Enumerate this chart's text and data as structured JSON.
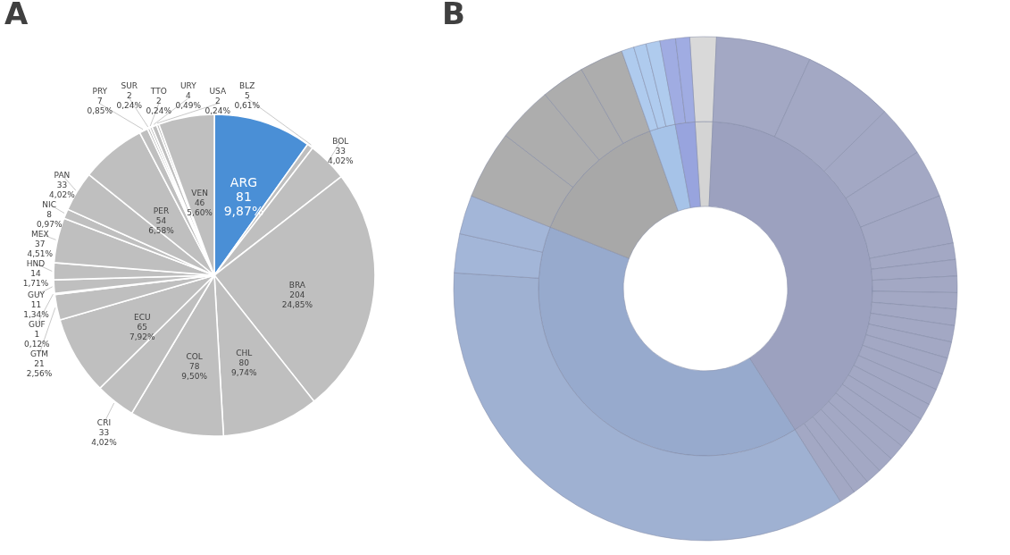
{
  "chart_data": [
    {
      "type": "pie",
      "title": "A",
      "categories": [
        "ARG",
        "BLZ",
        "BOL",
        "BRA",
        "CHL",
        "COL",
        "CRI",
        "ECU",
        "GTM",
        "GUF",
        "GUY",
        "HND",
        "MEX",
        "NIC",
        "PAN",
        "PER",
        "PRY",
        "SUR",
        "TTO",
        "URY",
        "USA",
        "VEN"
      ],
      "values": [
        81,
        5,
        33,
        204,
        80,
        78,
        33,
        65,
        21,
        1,
        11,
        14,
        37,
        8,
        33,
        54,
        7,
        2,
        2,
        4,
        2,
        46
      ],
      "value_labels": [
        "81\n9,87%",
        "5\n0,61%",
        "33\n4,02%",
        "204\n24,85%",
        "80\n9,74%",
        "78\n9,50%",
        "33\n4,02%",
        "65\n7,92%",
        "21\n2,56%",
        "1\n0,12%",
        "11\n1,34%",
        "14\n1,71%",
        "37\n4,51%",
        "8\n0,97%",
        "33\n4,02%",
        "54\n6,58%",
        "7\n0,85%",
        "2\n0,24%",
        "2\n0,24%",
        "4\n0,49%",
        "2\n0,24%",
        "46\n5,60%"
      ],
      "colors": [
        "#4a8fd6",
        "#bfbfbf",
        "#bfbfbf",
        "#bfbfbf",
        "#bfbfbf",
        "#bfbfbf",
        "#bfbfbf",
        "#bfbfbf",
        "#bfbfbf",
        "#bfbfbf",
        "#bfbfbf",
        "#bfbfbf",
        "#bfbfbf",
        "#bfbfbf",
        "#bfbfbf",
        "#bfbfbf",
        "#bfbfbf",
        "#bfbfbf",
        "#bfbfbf",
        "#bfbfbf",
        "#bfbfbf",
        "#bfbfbf"
      ]
    },
    {
      "type": "donut",
      "title": "B",
      "series": [
        {
          "values": [
            1.7,
            40.3,
            40.0,
            13.6,
            2.5,
            1.9
          ],
          "colors": [
            "#d4d4d4",
            "#9ca1bf",
            "#97aacd",
            "#a8a8a8",
            "#a6c3e8",
            "#98a4de"
          ]
        },
        {
          "values": [
            1.7,
            6.1,
            5.8,
            3.3,
            3.1,
            3.1,
            1.05,
            1.05,
            1.05,
            1.05,
            1.05,
            1.05,
            1.05,
            1.05,
            1.05,
            1.05,
            1.05,
            1.05,
            1.05,
            1.05,
            1.05,
            1.05,
            1.05,
            1.05,
            35.0,
            2.5,
            2.5,
            4.4,
            3.6,
            2.8,
            2.8,
            0.8,
            0.8,
            0.9,
            1.0,
            0.9
          ],
          "colors": [
            "#d9d9d9",
            "#a3a8c4",
            "#a3a8c4",
            "#a3a8c4",
            "#a3a8c4",
            "#a3a8c4",
            "#a3a8c4",
            "#a3a8c4",
            "#a3a8c4",
            "#a3a8c4",
            "#a3a8c4",
            "#a3a8c4",
            "#a3a8c4",
            "#a3a8c4",
            "#a3a8c4",
            "#a3a8c4",
            "#a3a8c4",
            "#a3a8c4",
            "#a3a8c4",
            "#a3a8c4",
            "#a3a8c4",
            "#a3a8c4",
            "#a3a8c4",
            "#a3a8c4",
            "#9fb1d2",
            "#a3b6d8",
            "#a3b6d8",
            "#adadad",
            "#adadad",
            "#adadad",
            "#adadad",
            "#afcbee",
            "#afcbee",
            "#afcbee",
            "#a0ace2",
            "#a0ace2"
          ]
        }
      ]
    }
  ]
}
